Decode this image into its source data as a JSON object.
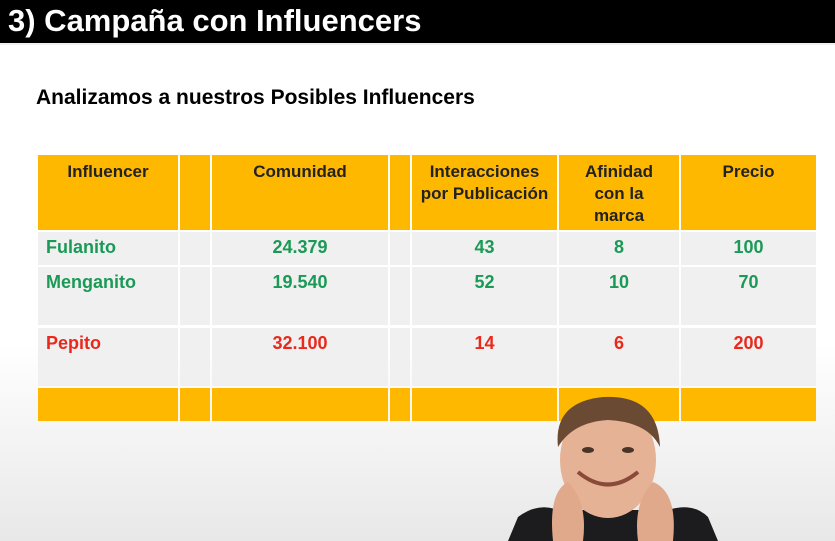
{
  "slide": {
    "title": "3) Campaña con Influencers",
    "subtitle": "Analizamos a nuestros Posibles Influencers"
  },
  "table": {
    "headers": [
      "Influencer",
      "Comunidad",
      "Interacciones por Publicación",
      "Afinidad con la marca",
      "Precio"
    ],
    "rows": [
      {
        "name": "Fulanito",
        "comunidad": "24.379",
        "interacciones": "43",
        "afinidad": "8",
        "precio": "100",
        "color": "#1a9a56"
      },
      {
        "name": "Menganito",
        "comunidad": "19.540",
        "interacciones": "52",
        "afinidad": "10",
        "precio": "70",
        "color": "#1a9a56"
      },
      {
        "name": "Pepito",
        "comunidad": "32.100",
        "interacciones": "14",
        "afinidad": "6",
        "precio": "200",
        "color": "#e8291c"
      }
    ]
  },
  "colors": {
    "header": "#ffb800",
    "good": "#1a9a56",
    "bad": "#e8291c"
  }
}
